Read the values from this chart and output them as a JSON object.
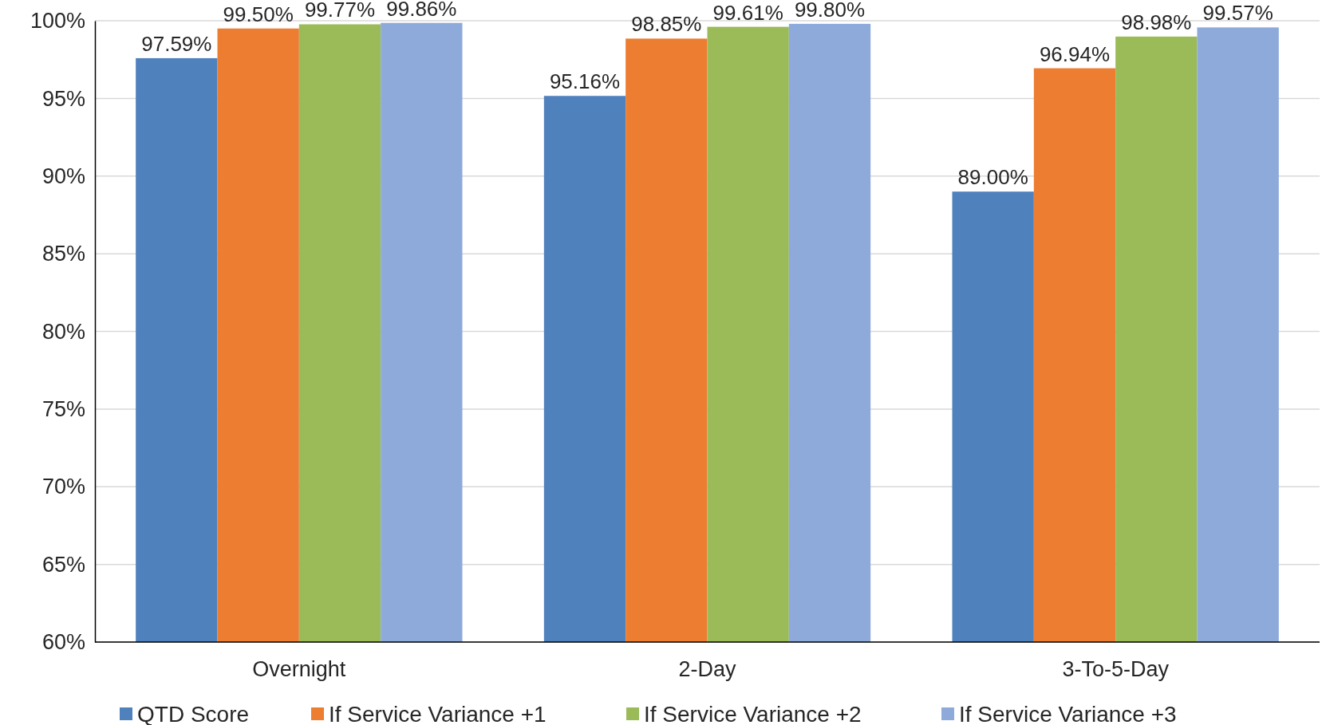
{
  "chart_data": {
    "type": "bar",
    "categories": [
      "Overnight",
      "2-Day",
      "3-To-5-Day"
    ],
    "series": [
      {
        "name": "QTD Score",
        "color": "#4f81bd",
        "values": [
          97.59,
          95.16,
          89.0
        ],
        "value_labels": [
          "97.59%",
          "95.16%",
          "89.00%"
        ]
      },
      {
        "name": "If Service Variance +1",
        "color": "#ed7d31",
        "values": [
          99.5,
          98.85,
          96.94
        ],
        "value_labels": [
          "99.50%",
          "98.85%",
          "96.94%"
        ]
      },
      {
        "name": "If Service Variance +2",
        "color": "#9bbb59",
        "values": [
          99.77,
          99.61,
          98.98
        ],
        "value_labels": [
          "99.77%",
          "99.61%",
          "98.98%"
        ]
      },
      {
        "name": "If Service Variance +3",
        "color": "#8eaadb",
        "values": [
          99.86,
          99.8,
          99.57
        ],
        "value_labels": [
          "99.86%",
          "99.80%",
          "99.57%"
        ]
      }
    ],
    "ylim": [
      60,
      100
    ],
    "yticks": [
      {
        "value": 60,
        "label": "60%"
      },
      {
        "value": 65,
        "label": "65%"
      },
      {
        "value": 70,
        "label": "70%"
      },
      {
        "value": 75,
        "label": "75%"
      },
      {
        "value": 80,
        "label": "80%"
      },
      {
        "value": 85,
        "label": "85%"
      },
      {
        "value": 90,
        "label": "90%"
      },
      {
        "value": 95,
        "label": "95%"
      },
      {
        "value": 100,
        "label": "100%"
      }
    ],
    "grid": "y",
    "legend": "bottom"
  }
}
